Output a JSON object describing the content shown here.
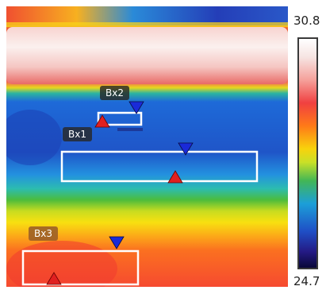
{
  "scale": {
    "max_label": "30.8",
    "min_label": "24.7",
    "gradient_colors": [
      "#ffffff",
      "#f5a09a",
      "#f04040",
      "#ff7a18",
      "#f8d20c",
      "#42b656",
      "#1c9fd8",
      "#1f4fc6",
      "#241a84",
      "#0a0838"
    ]
  },
  "boxes": [
    {
      "id": "bx1",
      "label": "Bx1"
    },
    {
      "id": "bx2",
      "label": "Bx2"
    },
    {
      "id": "bx3",
      "label": "Bx3"
    }
  ],
  "marker_colors": {
    "max": "#e02020",
    "min": "#1a2ad8"
  },
  "box_outline_color": "#ffffff"
}
